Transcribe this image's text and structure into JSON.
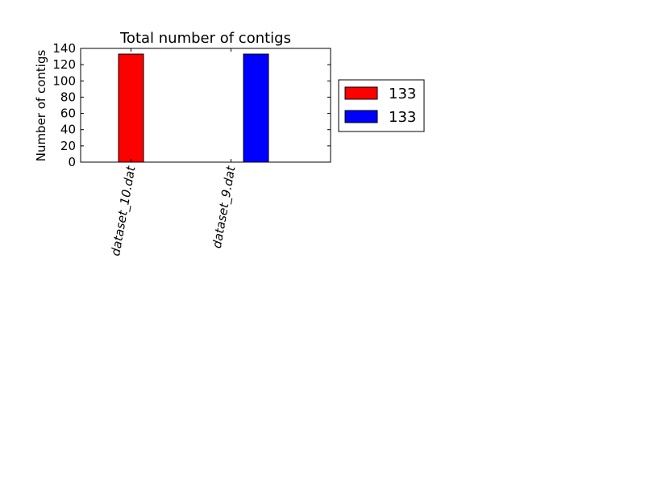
{
  "chart_data": {
    "type": "bar",
    "title": "Total number of contigs",
    "xlabel": "",
    "ylabel": "Number of contigs",
    "categories": [
      "dataset_10.dat",
      "dataset_9.dat"
    ],
    "series": [
      {
        "name": "133",
        "color": "#ff0000",
        "values": [
          133,
          0
        ]
      },
      {
        "name": "133",
        "color": "#0000ff",
        "values": [
          0,
          133
        ]
      }
    ],
    "ylim": [
      0,
      140
    ],
    "yticks": [
      "0",
      "20",
      "40",
      "60",
      "80",
      "100",
      "120",
      "140"
    ],
    "grid": false,
    "legend": "outside-right"
  }
}
